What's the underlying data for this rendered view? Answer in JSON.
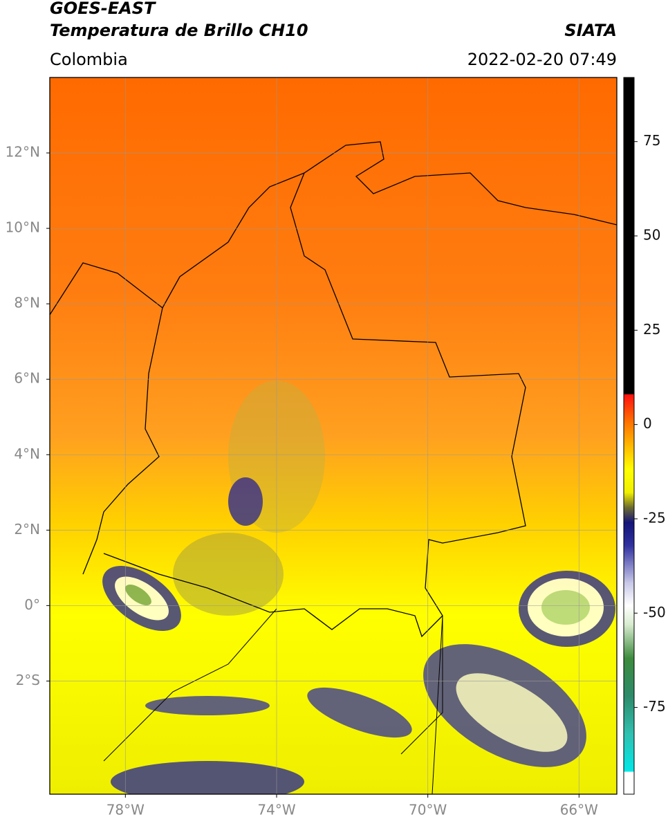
{
  "header": {
    "title": "GOES-EAST",
    "subtitle": "Temperatura de Brillo CH10",
    "source": "SIATA",
    "region": "Colombia",
    "timestamp": "2022-02-20 07:49"
  },
  "map": {
    "xlim": [
      -80,
      -65
    ],
    "ylim": [
      -5,
      14
    ],
    "grid": true,
    "xticks": [
      {
        "value": -78,
        "label": "78°W"
      },
      {
        "value": -74,
        "label": "74°W"
      },
      {
        "value": -70,
        "label": "70°W"
      },
      {
        "value": -66,
        "label": "66°W"
      }
    ],
    "yticks": [
      {
        "value": 12,
        "label": "12°N"
      },
      {
        "value": 10,
        "label": "10°N"
      },
      {
        "value": 8,
        "label": "8°N"
      },
      {
        "value": 6,
        "label": "6°N"
      },
      {
        "value": 4,
        "label": "4°N"
      },
      {
        "value": 2,
        "label": "2°N"
      },
      {
        "value": 0,
        "label": "0°"
      },
      {
        "value": -2,
        "label": "2°S"
      }
    ]
  },
  "colorbar": {
    "lim": [
      -98,
      92
    ],
    "ticks": [
      75,
      50,
      25,
      0,
      -25,
      -50,
      -75
    ],
    "colormap": [
      {
        "value": 92,
        "color": "#000000"
      },
      {
        "value": 8,
        "color": "#000000"
      },
      {
        "value": 8,
        "color": "#ff1010"
      },
      {
        "value": 0,
        "color": "#ff7a00"
      },
      {
        "value": -12,
        "color": "#ffff00"
      },
      {
        "value": -18,
        "color": "#f0f000"
      },
      {
        "value": -22,
        "color": "#6b6b30"
      },
      {
        "value": -26,
        "color": "#14147a"
      },
      {
        "value": -32,
        "color": "#3030a0"
      },
      {
        "value": -42,
        "color": "#c8c8e8"
      },
      {
        "value": -48,
        "color": "#ffffff"
      },
      {
        "value": -53,
        "color": "#d8ecd0"
      },
      {
        "value": -62,
        "color": "#3d8b3d"
      },
      {
        "value": -72,
        "color": "#2e8b6a"
      },
      {
        "value": -82,
        "color": "#30c0b0"
      },
      {
        "value": -92,
        "color": "#00e8e8"
      },
      {
        "value": -92,
        "color": "#ffffff"
      },
      {
        "value": -98,
        "color": "#ffffff"
      }
    ]
  }
}
